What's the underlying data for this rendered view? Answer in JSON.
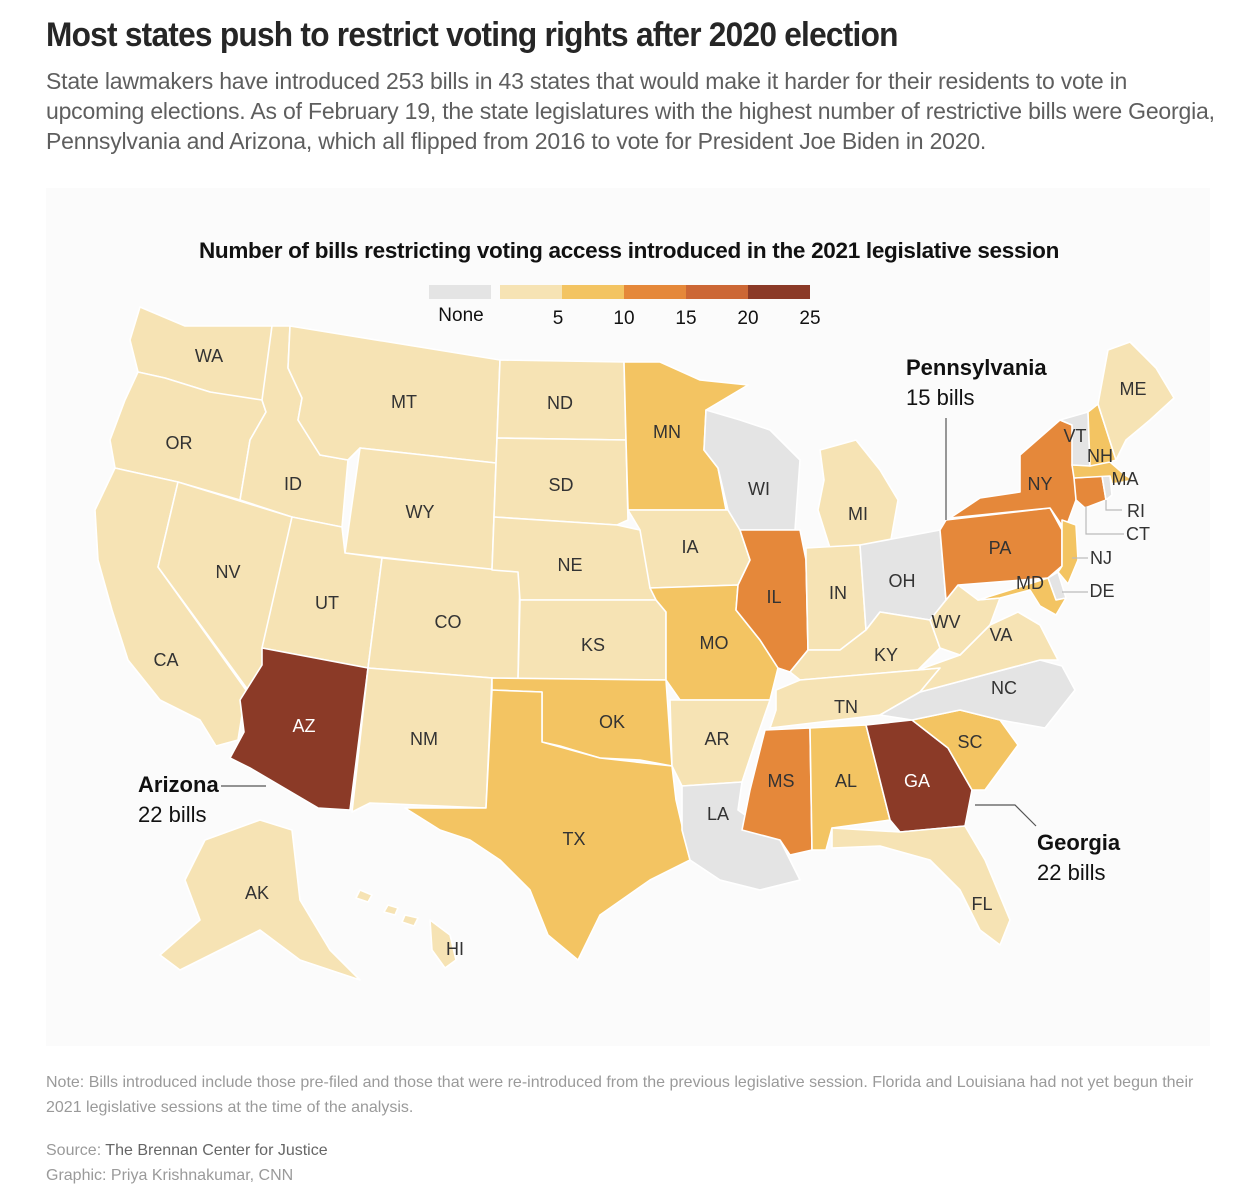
{
  "header": {
    "headline": "Most states push to restrict voting rights after 2020 election",
    "dek": "State lawmakers have introduced 253 bills in 43 states that would make it harder for their residents to vote in upcoming elections. As of February 19, the state legislatures with the highest number of restrictive bills were Georgia, Pennsylvania and Arizona, which all flipped from 2016 to vote for President Joe Biden in 2020."
  },
  "map": {
    "title": "Number of bills restricting voting access introduced in the 2021 legislative session",
    "legend": {
      "none_label": "None",
      "none_color": "#e4e4e4",
      "bins": [
        {
          "range": "1-5",
          "color": "#f6e3b4"
        },
        {
          "range": "5-10",
          "color": "#f3c462"
        },
        {
          "range": "10-15",
          "color": "#e5883a"
        },
        {
          "range": "15-20",
          "color": "#cc6735"
        },
        {
          "range": "20-25",
          "color": "#8b3a27"
        }
      ],
      "ticks": [
        "5",
        "10",
        "15",
        "20",
        "25"
      ]
    },
    "states": [
      {
        "abbr": "WA",
        "bin": 1
      },
      {
        "abbr": "OR",
        "bin": 1
      },
      {
        "abbr": "CA",
        "bin": 1
      },
      {
        "abbr": "ID",
        "bin": 1
      },
      {
        "abbr": "NV",
        "bin": 1
      },
      {
        "abbr": "MT",
        "bin": 1
      },
      {
        "abbr": "WY",
        "bin": 1
      },
      {
        "abbr": "UT",
        "bin": 1
      },
      {
        "abbr": "CO",
        "bin": 1
      },
      {
        "abbr": "AZ",
        "bin": 5
      },
      {
        "abbr": "NM",
        "bin": 1
      },
      {
        "abbr": "ND",
        "bin": 1
      },
      {
        "abbr": "SD",
        "bin": 1
      },
      {
        "abbr": "NE",
        "bin": 1
      },
      {
        "abbr": "KS",
        "bin": 1
      },
      {
        "abbr": "OK",
        "bin": 2
      },
      {
        "abbr": "TX",
        "bin": 2
      },
      {
        "abbr": "MN",
        "bin": 2
      },
      {
        "abbr": "IA",
        "bin": 1
      },
      {
        "abbr": "MO",
        "bin": 2
      },
      {
        "abbr": "AR",
        "bin": 1
      },
      {
        "abbr": "LA",
        "bin": 0
      },
      {
        "abbr": "WI",
        "bin": 0
      },
      {
        "abbr": "IL",
        "bin": 3
      },
      {
        "abbr": "MI",
        "bin": 1
      },
      {
        "abbr": "IN",
        "bin": 1
      },
      {
        "abbr": "OH",
        "bin": 0
      },
      {
        "abbr": "KY",
        "bin": 1
      },
      {
        "abbr": "TN",
        "bin": 1
      },
      {
        "abbr": "MS",
        "bin": 3
      },
      {
        "abbr": "AL",
        "bin": 2
      },
      {
        "abbr": "GA",
        "bin": 5
      },
      {
        "abbr": "FL",
        "bin": 1
      },
      {
        "abbr": "SC",
        "bin": 2
      },
      {
        "abbr": "NC",
        "bin": 0
      },
      {
        "abbr": "VA",
        "bin": 1
      },
      {
        "abbr": "WV",
        "bin": 1
      },
      {
        "abbr": "PA",
        "bin": 3
      },
      {
        "abbr": "NY",
        "bin": 3
      },
      {
        "abbr": "NJ",
        "bin": 2
      },
      {
        "abbr": "DE",
        "bin": 0
      },
      {
        "abbr": "MD",
        "bin": 2
      },
      {
        "abbr": "CT",
        "bin": 3
      },
      {
        "abbr": "RI",
        "bin": 0
      },
      {
        "abbr": "MA",
        "bin": 2
      },
      {
        "abbr": "VT",
        "bin": 0
      },
      {
        "abbr": "NH",
        "bin": 2
      },
      {
        "abbr": "ME",
        "bin": 1
      },
      {
        "abbr": "AK",
        "bin": 1
      },
      {
        "abbr": "HI",
        "bin": 1
      }
    ],
    "annotations": {
      "pennsylvania": {
        "name": "Pennsylvania",
        "value": "15 bills"
      },
      "arizona": {
        "name": "Arizona",
        "value": "22 bills"
      },
      "georgia": {
        "name": "Georgia",
        "value": "22 bills"
      }
    }
  },
  "footer": {
    "note": "Note: Bills introduced include those pre-filed and those that were re-introduced from the previous legislative session. Florida and Louisiana had not yet begun their 2021 legislative sessions at the time of the analysis.",
    "source_label": "Source:",
    "source_value": "The Brennan Center for Justice",
    "graphic_label": "Graphic:",
    "graphic_value": "Priya Krishnakumar, CNN"
  }
}
